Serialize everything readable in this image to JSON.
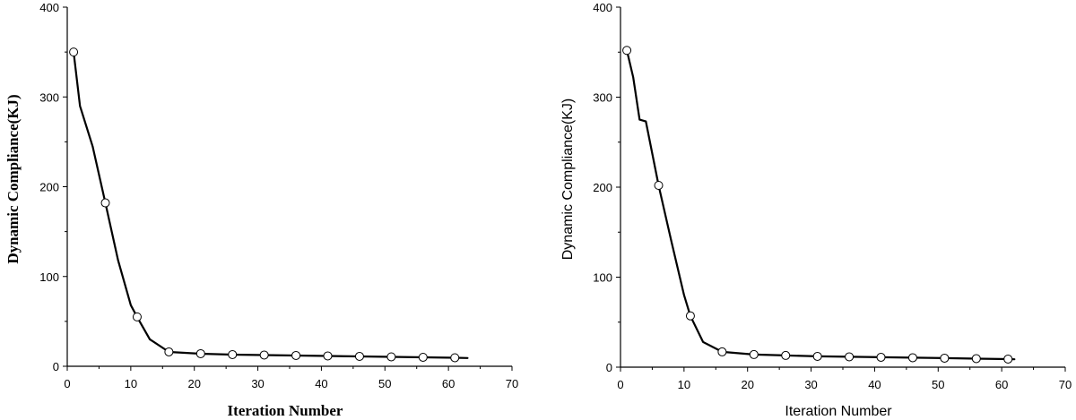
{
  "chart_data": [
    {
      "type": "line",
      "title": "",
      "xlabel": "Iteration Number",
      "ylabel": "Dynamic Compliance(KJ)",
      "xlim": [
        0,
        70
      ],
      "ylim": [
        0,
        400
      ],
      "x_ticks": [
        "0",
        "10",
        "20",
        "30",
        "40",
        "50",
        "60",
        "70"
      ],
      "y_ticks": [
        "0",
        "100",
        "200",
        "300",
        "400"
      ],
      "grid": false,
      "series": [
        {
          "line": [
            [
              1,
              350
            ],
            [
              2,
              290
            ],
            [
              4,
              245
            ],
            [
              6,
              182
            ],
            [
              8,
              118
            ],
            [
              10,
              68
            ],
            [
              11,
              55
            ],
            [
              13,
              30
            ],
            [
              16,
              16
            ],
            [
              21,
              14
            ],
            [
              26,
              13
            ],
            [
              31,
              12.5
            ],
            [
              36,
              12
            ],
            [
              41,
              11.5
            ],
            [
              46,
              11
            ],
            [
              51,
              10.5
            ],
            [
              56,
              10
            ],
            [
              61,
              9.5
            ],
            [
              63,
              9.2
            ]
          ],
          "markers": [
            [
              1,
              350
            ],
            [
              6,
              182
            ],
            [
              11,
              55
            ],
            [
              16,
              16
            ],
            [
              21,
              14
            ],
            [
              26,
              13
            ],
            [
              31,
              12.5
            ],
            [
              36,
              12
            ],
            [
              41,
              11.5
            ],
            [
              46,
              11
            ],
            [
              51,
              10.5
            ],
            [
              56,
              10
            ],
            [
              61,
              9.5
            ]
          ]
        }
      ]
    },
    {
      "type": "line",
      "title": "",
      "xlabel": "Iteration Number",
      "ylabel": "Dynamic Compliance(KJ)",
      "xlim": [
        0,
        70
      ],
      "ylim": [
        0,
        400
      ],
      "x_ticks": [
        "0",
        "10",
        "20",
        "30",
        "40",
        "50",
        "60",
        "70"
      ],
      "y_ticks": [
        "0",
        "100",
        "200",
        "300",
        "400"
      ],
      "grid": false,
      "series": [
        {
          "line": [
            [
              1,
              352
            ],
            [
              2,
              322
            ],
            [
              3,
              275
            ],
            [
              4,
              273
            ],
            [
              6,
              202
            ],
            [
              8,
              140
            ],
            [
              10,
              80
            ],
            [
              11,
              57
            ],
            [
              13,
              28
            ],
            [
              16,
              17
            ],
            [
              21,
              14
            ],
            [
              26,
              13
            ],
            [
              31,
              12
            ],
            [
              36,
              11.5
            ],
            [
              41,
              11
            ],
            [
              46,
              10.5
            ],
            [
              51,
              10
            ],
            [
              56,
              9.5
            ],
            [
              61,
              9
            ],
            [
              62,
              8.8
            ]
          ],
          "markers": [
            [
              1,
              352
            ],
            [
              6,
              202
            ],
            [
              11,
              57
            ],
            [
              16,
              17
            ],
            [
              21,
              14
            ],
            [
              26,
              13
            ],
            [
              31,
              12
            ],
            [
              36,
              11.5
            ],
            [
              41,
              11
            ],
            [
              46,
              10.5
            ],
            [
              51,
              10
            ],
            [
              56,
              9.5
            ],
            [
              61,
              9
            ]
          ]
        }
      ]
    }
  ]
}
